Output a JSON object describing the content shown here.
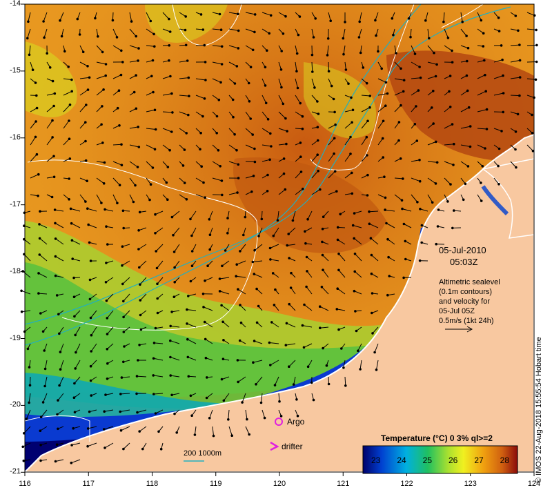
{
  "map": {
    "y_axis_labels": [
      "-14",
      "-15",
      "-16",
      "-17",
      "-18",
      "-19",
      "-20",
      "-21"
    ],
    "x_axis_labels": [
      "116",
      "117",
      "118",
      "119",
      "120",
      "121",
      "122",
      "123",
      "124"
    ],
    "lat_range": [
      -21,
      -14
    ],
    "lon_range": [
      116,
      124
    ],
    "colors": {
      "land": "#f8c8a0",
      "coast_shelf": "#000060",
      "contour": "#ffffff",
      "isobath": "#20b0c0",
      "argo": "#e020e0"
    }
  },
  "annotation": {
    "date": "05-Jul-2010",
    "time": "05:03Z",
    "desc_line1": "Altimetric sealevel",
    "desc_line2": "(0.1m contours)",
    "desc_line3": "and velocity for",
    "desc_line4": "05-Jul 05Z",
    "speed_ref": "0.5m/s (1kt 24h)"
  },
  "legend": {
    "argo_label": "Argo",
    "drifter_label": "drifter",
    "bathy_label": "200  1000m"
  },
  "colorbar": {
    "title": "Temperature (°C) 0 3% ql>=2",
    "ticks": [
      "23",
      "24",
      "25",
      "26",
      "27",
      "28"
    ],
    "range": [
      22.5,
      28.5
    ]
  },
  "credit": "© IMOS 22-Aug-2018 15:55:54 Hobart time"
}
